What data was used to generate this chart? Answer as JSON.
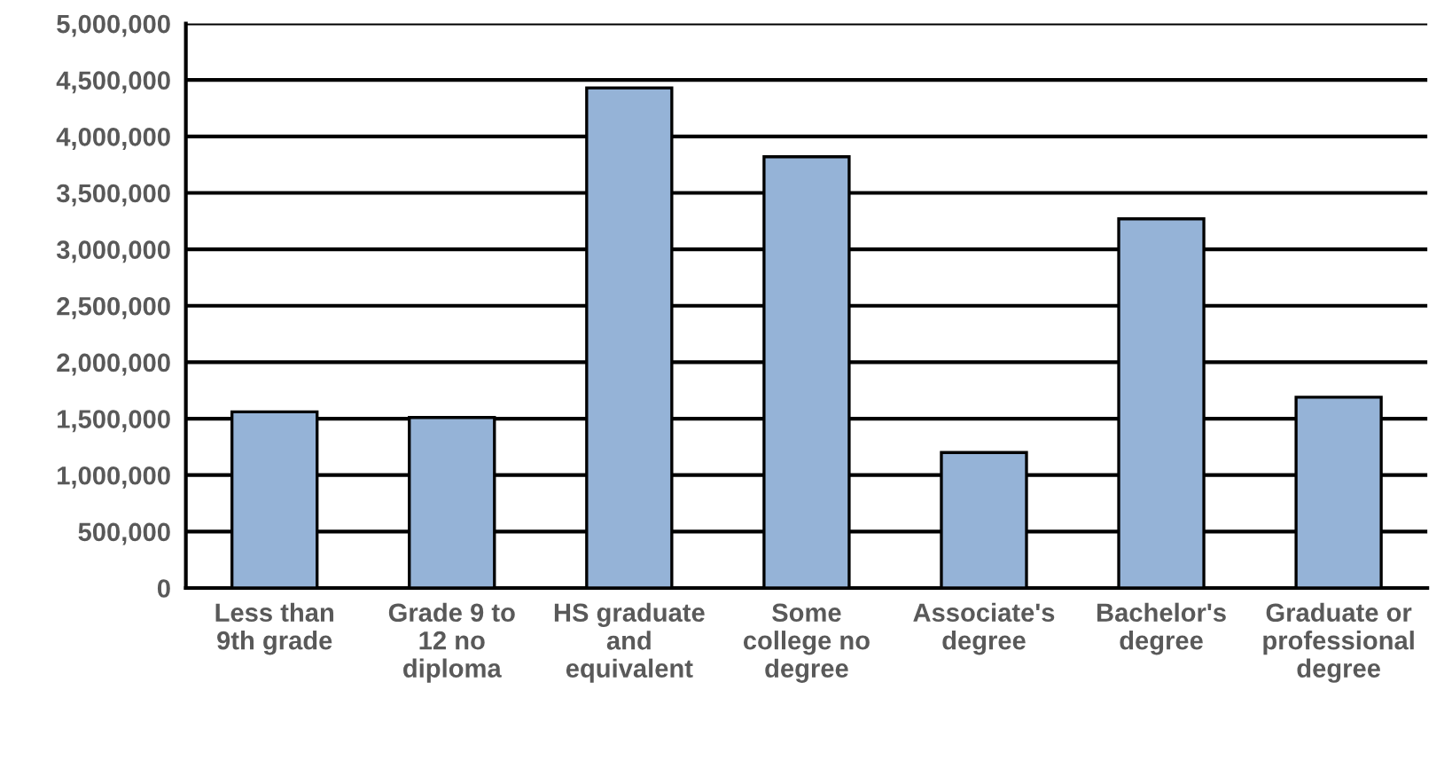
{
  "chart_data": {
    "type": "bar",
    "categories": [
      "Less than\n9th grade",
      "Grade 9 to\n12 no\ndiploma",
      "HS graduate\nand\nequivalent",
      "Some\ncollege no\ndegree",
      "Associate's\ndegree",
      "Bachelor's\ndegree",
      "Graduate or\nprofessional\ndegree"
    ],
    "values": [
      1560000,
      1510000,
      4430000,
      3820000,
      1200000,
      3270000,
      1690000
    ],
    "color": "#95b3d7",
    "ylim": [
      0,
      5000000
    ],
    "yticks": [
      {
        "value": 0,
        "label": "0"
      },
      {
        "value": 500000,
        "label": "500,000"
      },
      {
        "value": 1000000,
        "label": "1,000,000"
      },
      {
        "value": 1500000,
        "label": "1,500,000"
      },
      {
        "value": 2000000,
        "label": "2,000,000"
      },
      {
        "value": 2500000,
        "label": "2,500,000"
      },
      {
        "value": 3000000,
        "label": "3,000,000"
      },
      {
        "value": 3500000,
        "label": "3,500,000"
      },
      {
        "value": 4000000,
        "label": "4,000,000"
      },
      {
        "value": 4500000,
        "label": "4,500,000"
      },
      {
        "value": 5000000,
        "label": "5,000,000"
      }
    ],
    "grid": "y"
  }
}
